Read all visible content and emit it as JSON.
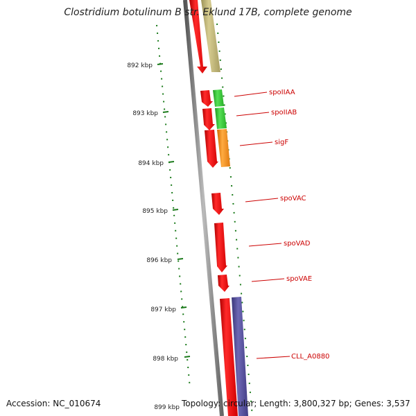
{
  "title": "Clostridium botulinum B str. Eklund 17B, complete genome",
  "footer": {
    "accession": "Accession: NC_010674",
    "topology": "Topology: circular; Length: 3,800,327 bp; Genes: 3,537"
  },
  "scale": {
    "ticks": [
      "892 kbp",
      "893 kbp",
      "894 kbp",
      "895 kbp",
      "896 kbp",
      "897 kbp",
      "898 kbp",
      "899 kbp"
    ]
  },
  "colors": {
    "backbone": "#8a8a8a",
    "tick": "#1a7a1a",
    "label_line": "#cc0000",
    "label_text": "#cc0000",
    "gene_red": "#ee1111",
    "gene_tan": "#c2b878",
    "gene_green": "#33cc33",
    "gene_orange": "#ff9922",
    "gene_purple": "#4f4a96"
  },
  "genes": [
    {
      "label": "",
      "color": "gene_red"
    },
    {
      "label": "",
      "color": "gene_tan"
    },
    {
      "label": "",
      "color": "gene_red"
    },
    {
      "label": "spoIIAA",
      "color": "gene_green"
    },
    {
      "label": "",
      "color": "gene_red"
    },
    {
      "label": "spoIIAB",
      "color": "gene_green"
    },
    {
      "label": "",
      "color": "gene_red"
    },
    {
      "label": "sigF",
      "color": "gene_orange"
    },
    {
      "label": "spoVAC",
      "color": "gene_red"
    },
    {
      "label": "spoVAD",
      "color": "gene_red"
    },
    {
      "label": "spoVAE",
      "color": "gene_red"
    },
    {
      "label": "",
      "color": "gene_red"
    },
    {
      "label": "CLL_A0880",
      "color": "gene_purple"
    }
  ]
}
